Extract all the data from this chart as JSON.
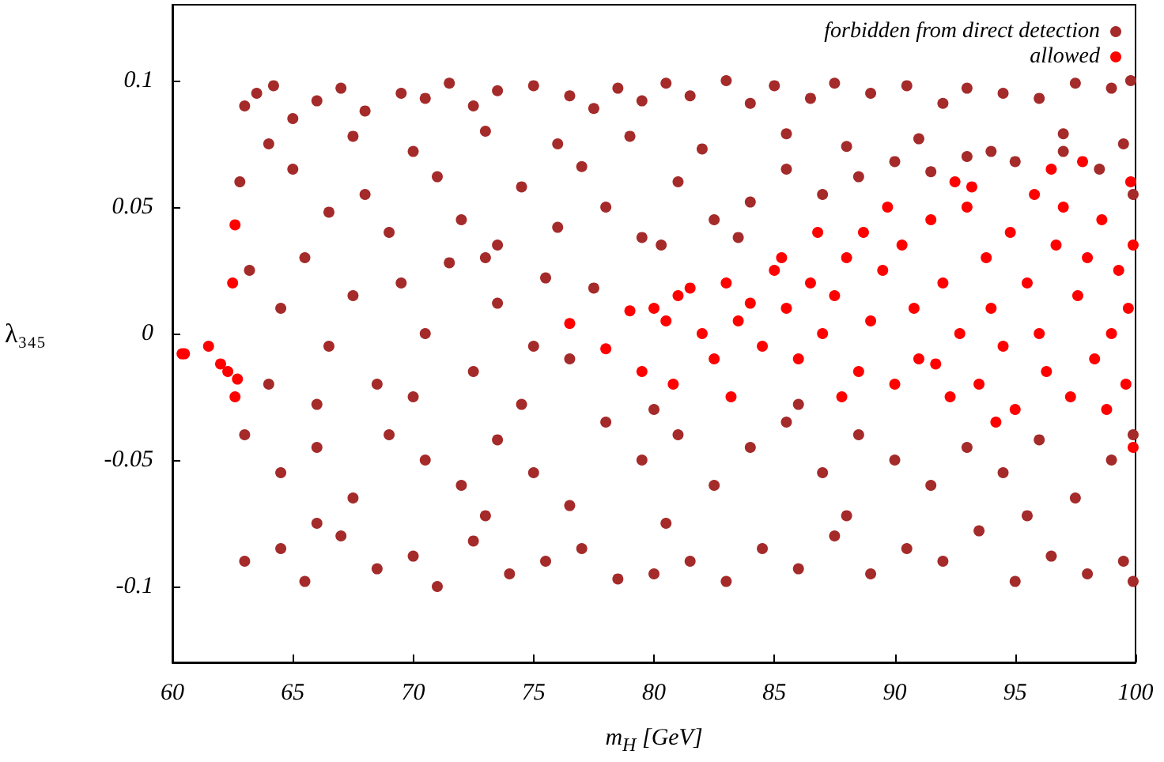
{
  "chart_data": {
    "type": "scatter",
    "xlabel": "m$_{H}$ [GeV]",
    "ylabel": "λ₃₄₅",
    "xlim": [
      60,
      100
    ],
    "xticks": [
      60,
      65,
      70,
      75,
      80,
      85,
      90,
      95,
      100
    ],
    "ylim": [
      -0.13,
      0.13
    ],
    "yticks": [
      -0.1,
      -0.05,
      0,
      0.05,
      0.1
    ],
    "legend": "top right",
    "marker": "circle",
    "grid": false,
    "series": [
      {
        "name": "forbidden from direct detection",
        "color": "#a52a2a",
        "x": [
          63,
          63.5,
          64.2,
          65,
          66,
          67,
          68,
          69.5,
          70.5,
          71.5,
          72.5,
          73.5,
          75,
          76.5,
          77.5,
          78.5,
          79.5,
          80.5,
          81.5,
          83,
          84,
          85,
          86.5,
          87.5,
          89,
          90.5,
          92,
          93,
          94.5,
          96,
          97.5,
          99,
          99.8,
          64,
          67.5,
          70,
          73,
          76,
          79,
          82,
          85.5,
          88,
          91,
          94,
          97,
          99.5,
          62.8,
          65,
          66.5,
          68,
          69,
          71,
          72,
          73.5,
          74.5,
          76,
          77,
          78,
          79.5,
          81,
          82.5,
          84,
          85.5,
          87,
          88.5,
          90,
          91.5,
          93,
          95,
          97,
          98.5,
          99.9,
          80.3,
          83.5,
          63.2,
          64.5,
          65.5,
          66.5,
          67.5,
          68.5,
          69.5,
          70.5,
          71.5,
          72.5,
          73.5,
          74.5,
          75.5,
          76.5,
          77.5,
          64,
          66,
          70,
          73,
          75,
          63,
          64.5,
          66,
          67.5,
          69,
          70.5,
          72,
          73.5,
          75,
          76.5,
          78,
          79.5,
          81,
          82.5,
          84,
          85.5,
          87,
          88.5,
          90,
          91.5,
          93,
          94.5,
          96,
          97.5,
          99,
          99.9,
          80,
          86,
          63,
          64.5,
          65.5,
          67,
          68.5,
          70,
          71,
          72.5,
          74,
          75.5,
          77,
          78.5,
          80,
          81.5,
          83,
          84.5,
          86,
          87.5,
          89,
          90.5,
          92,
          93.5,
          95,
          96.5,
          98,
          99.5,
          99.9,
          66,
          73,
          80.5,
          88,
          95.5
        ],
        "values": [
          0.09,
          0.095,
          0.098,
          0.085,
          0.092,
          0.097,
          0.088,
          0.095,
          0.093,
          0.099,
          0.09,
          0.096,
          0.098,
          0.094,
          0.089,
          0.097,
          0.092,
          0.099,
          0.094,
          0.1,
          0.091,
          0.098,
          0.093,
          0.099,
          0.095,
          0.098,
          0.091,
          0.097,
          0.095,
          0.093,
          0.099,
          0.097,
          0.1,
          0.075,
          0.078,
          0.072,
          0.08,
          0.075,
          0.078,
          0.073,
          0.079,
          0.074,
          0.077,
          0.072,
          0.079,
          0.075,
          0.06,
          0.065,
          0.048,
          0.055,
          0.04,
          0.062,
          0.045,
          0.035,
          0.058,
          0.042,
          0.066,
          0.05,
          0.038,
          0.06,
          0.045,
          0.052,
          0.065,
          0.055,
          0.062,
          0.068,
          0.064,
          0.07,
          0.068,
          0.072,
          0.065,
          0.055,
          0.035,
          0.038,
          0.025,
          0.01,
          0.03,
          -0.005,
          0.015,
          -0.02,
          0.02,
          0,
          0.028,
          -0.015,
          0.012,
          -0.028,
          0.022,
          -0.01,
          0.018,
          -0.02,
          -0.028,
          -0.025,
          0.03,
          -0.005,
          -0.04,
          -0.055,
          -0.045,
          -0.065,
          -0.04,
          -0.05,
          -0.06,
          -0.042,
          -0.055,
          -0.068,
          -0.035,
          -0.05,
          -0.04,
          -0.06,
          -0.045,
          -0.035,
          -0.055,
          -0.04,
          -0.05,
          -0.06,
          -0.045,
          -0.055,
          -0.042,
          -0.065,
          -0.05,
          -0.04,
          -0.03,
          -0.028,
          -0.09,
          -0.085,
          -0.098,
          -0.08,
          -0.093,
          -0.088,
          -0.1,
          -0.082,
          -0.095,
          -0.09,
          -0.085,
          -0.097,
          -0.095,
          -0.09,
          -0.098,
          -0.085,
          -0.093,
          -0.08,
          -0.095,
          -0.085,
          -0.09,
          -0.078,
          -0.098,
          -0.088,
          -0.095,
          -0.09,
          -0.098,
          -0.075,
          -0.072,
          -0.075,
          -0.072,
          -0.072
        ]
      },
      {
        "name": "allowed",
        "color": "#ff0000",
        "x": [
          60.4,
          60.5,
          61.5,
          62,
          62.3,
          62.7,
          62.6,
          62.5,
          62.6,
          76.5,
          78,
          79,
          80,
          80.5,
          81,
          81.5,
          82,
          82.5,
          83,
          83.5,
          84,
          84.5,
          85,
          85.5,
          86,
          86.5,
          87,
          87.5,
          88,
          88.5,
          89,
          89.5,
          90,
          90.3,
          90.8,
          91,
          91.5,
          92,
          92.3,
          92.7,
          93,
          93.5,
          93.8,
          94,
          94.5,
          94.8,
          95,
          95.5,
          95.8,
          96,
          96.3,
          96.7,
          97,
          97.3,
          97.6,
          98,
          98.3,
          98.6,
          99,
          99.3,
          99.6,
          99.8,
          99.9,
          99.7,
          98.8,
          91.7,
          85.3,
          87.8,
          88.7,
          93.2,
          79.5,
          80.8,
          83.2,
          86.8,
          89.7,
          94.2,
          96.5,
          97.8,
          92.5,
          99.9
        ],
        "values": [
          -0.008,
          -0.008,
          -0.005,
          -0.012,
          -0.015,
          -0.018,
          -0.025,
          0.02,
          0.043,
          0.004,
          -0.006,
          0.009,
          0.01,
          0.005,
          0.015,
          0.018,
          0,
          -0.01,
          0.02,
          0.005,
          0.012,
          -0.005,
          0.025,
          0.01,
          -0.01,
          0.02,
          0,
          0.015,
          0.03,
          -0.015,
          0.005,
          0.025,
          -0.02,
          0.035,
          0.01,
          -0.01,
          0.045,
          0.02,
          -0.025,
          0,
          0.05,
          -0.02,
          0.03,
          0.01,
          -0.005,
          0.04,
          -0.03,
          0.02,
          0.055,
          0,
          -0.015,
          0.035,
          0.05,
          -0.025,
          0.015,
          0.03,
          -0.01,
          0.045,
          0,
          0.025,
          -0.02,
          0.06,
          0.035,
          0.01,
          -0.03,
          -0.012,
          0.03,
          -0.025,
          0.04,
          0.058,
          -0.015,
          -0.02,
          -0.025,
          0.04,
          0.05,
          -0.035,
          0.065,
          0.068,
          0.06,
          -0.045
        ]
      }
    ]
  }
}
